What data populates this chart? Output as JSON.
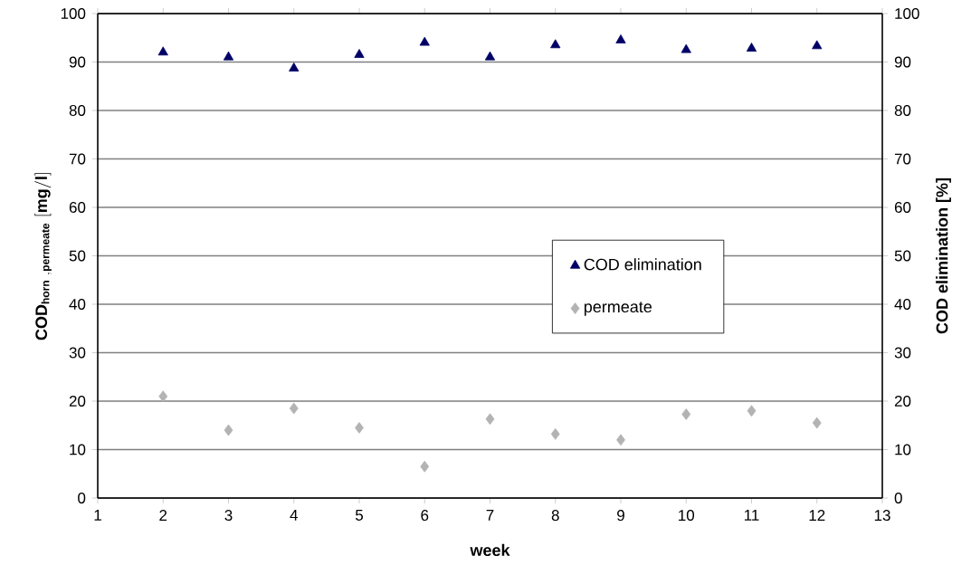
{
  "chart_data": {
    "type": "scatter",
    "xlabel": "week",
    "ylabel": "\\mathbf{COD_{horn\\ ,permeate}\\ [mg/l]}",
    "y2label": "COD elimination [%]",
    "x": [
      2,
      3,
      4,
      5,
      6,
      7,
      8,
      9,
      10,
      11,
      12
    ],
    "series": [
      {
        "name": "COD elimination",
        "color": "#000066",
        "marker": "triangle",
        "axis": "y2",
        "values": [
          92,
          91,
          88.7,
          91.5,
          94,
          91,
          93.5,
          94.5,
          92.5,
          92.8,
          93.3
        ]
      },
      {
        "name": "permeate",
        "color": "#b3b3b3",
        "marker": "diamond",
        "values": [
          21,
          14,
          18.5,
          14.5,
          6.5,
          16.3,
          13.2,
          12,
          17.3,
          18,
          15.5
        ]
      }
    ],
    "xlim": [
      1,
      13
    ],
    "xticks": [
      1,
      2,
      3,
      4,
      5,
      6,
      7,
      8,
      9,
      10,
      11,
      12,
      13
    ],
    "ylim": [
      0,
      100
    ],
    "yticks": [
      0,
      10,
      20,
      30,
      40,
      50,
      60,
      70,
      80,
      90,
      100
    ],
    "y2lim": [
      0,
      100
    ],
    "y2ticks": [
      0,
      10,
      20,
      30,
      40,
      50,
      60,
      70,
      80,
      90,
      100
    ],
    "grid": "y",
    "legend": "right"
  }
}
